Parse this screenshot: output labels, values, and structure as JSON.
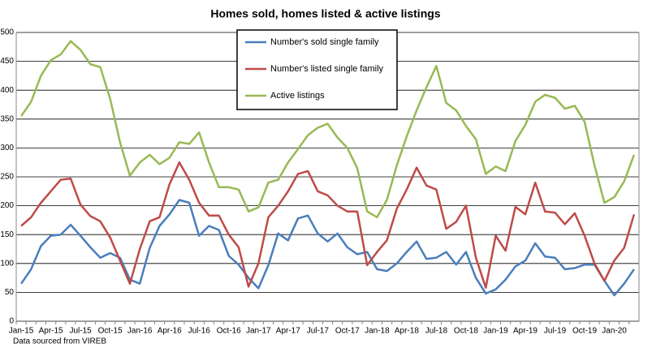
{
  "chart_data": {
    "type": "line",
    "title": "Homes sold, homes listed & active listings",
    "note": "Data sourced from VIREB",
    "categories": [
      "Jan-15",
      null,
      null,
      "Apr-15",
      null,
      null,
      "Jul-15",
      null,
      null,
      "Oct-15",
      null,
      null,
      "Jan-16",
      null,
      null,
      "Apr-16",
      null,
      null,
      "Jul-16",
      null,
      null,
      "Oct-16",
      null,
      null,
      "Jan-17",
      null,
      null,
      "Apr-17",
      null,
      null,
      "Jul-17",
      null,
      null,
      "Oct-17",
      null,
      null,
      "Jan-18",
      null,
      null,
      "Apr-18",
      null,
      null,
      "Jul-18",
      null,
      null,
      "Oct-18",
      null,
      null,
      "Jan-19",
      null,
      null,
      "Apr-19",
      null,
      null,
      "Jul-19",
      null,
      null,
      "Oct-19",
      null,
      null,
      "Jan-20",
      null,
      null
    ],
    "series": [
      {
        "name": "Number's sold single family",
        "color": "#4a7ebb",
        "values": [
          65,
          90,
          130,
          148,
          150,
          167,
          148,
          128,
          110,
          118,
          110,
          72,
          65,
          127,
          165,
          185,
          210,
          205,
          148,
          165,
          158,
          113,
          98,
          75,
          57,
          97,
          152,
          140,
          178,
          183,
          152,
          138,
          152,
          128,
          116,
          120,
          90,
          87,
          100,
          120,
          138,
          108,
          110,
          120,
          98,
          120,
          75,
          48,
          55,
          72,
          95,
          105,
          135,
          112,
          110,
          90,
          92,
          98,
          98,
          70,
          45,
          65,
          90
        ]
      },
      {
        "name": "Number's listed single family",
        "color": "#be4b48",
        "values": [
          165,
          180,
          205,
          225,
          245,
          247,
          202,
          182,
          173,
          145,
          105,
          65,
          125,
          173,
          180,
          237,
          275,
          245,
          205,
          183,
          183,
          150,
          128,
          60,
          100,
          180,
          200,
          225,
          255,
          260,
          225,
          218,
          200,
          190,
          190,
          97,
          120,
          140,
          195,
          228,
          266,
          235,
          228,
          160,
          172,
          200,
          110,
          58,
          148,
          122,
          198,
          185,
          240,
          190,
          188,
          168,
          187,
          148,
          100,
          70,
          105,
          127,
          185
        ]
      },
      {
        "name": "Active listings",
        "color": "#98b954",
        "values": [
          355,
          380,
          425,
          452,
          462,
          485,
          470,
          445,
          440,
          385,
          310,
          252,
          275,
          288,
          272,
          283,
          310,
          307,
          327,
          275,
          232,
          232,
          228,
          190,
          197,
          240,
          245,
          275,
          298,
          322,
          335,
          342,
          318,
          300,
          265,
          190,
          180,
          210,
          270,
          320,
          365,
          405,
          442,
          378,
          365,
          338,
          315,
          255,
          268,
          260,
          312,
          340,
          380,
          392,
          387,
          368,
          373,
          345,
          270,
          205,
          215,
          242,
          288
        ]
      }
    ],
    "ylim": [
      0,
      500
    ],
    "yticks": [
      0,
      50,
      100,
      150,
      200,
      250,
      300,
      350,
      400,
      450,
      500
    ],
    "grid": true
  }
}
